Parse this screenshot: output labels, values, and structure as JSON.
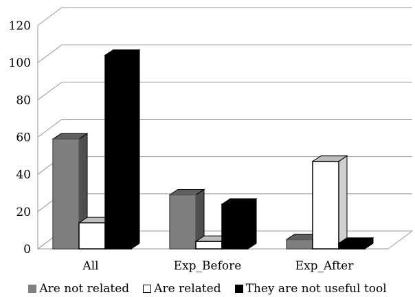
{
  "chart_data": {
    "type": "bar",
    "style": "3d-clustered-column",
    "title": "",
    "xlabel": "",
    "ylabel": "",
    "ylim": [
      0,
      120
    ],
    "yticks": [
      "0",
      "20",
      "40",
      "60",
      "80",
      "100",
      "120"
    ],
    "grid": true,
    "legend_position": "bottom",
    "categories": [
      "All",
      "Exp_Before",
      "Exp_After"
    ],
    "series": [
      {
        "name": "Are not related",
        "values": [
          59,
          29,
          5
        ],
        "color": "#7f7f7f"
      },
      {
        "name": "Are related",
        "values": [
          14,
          4,
          47
        ],
        "color": "#ffffff"
      },
      {
        "name": "They are not useful tool",
        "values": [
          104,
          24,
          3
        ],
        "color": "#000000"
      }
    ]
  }
}
